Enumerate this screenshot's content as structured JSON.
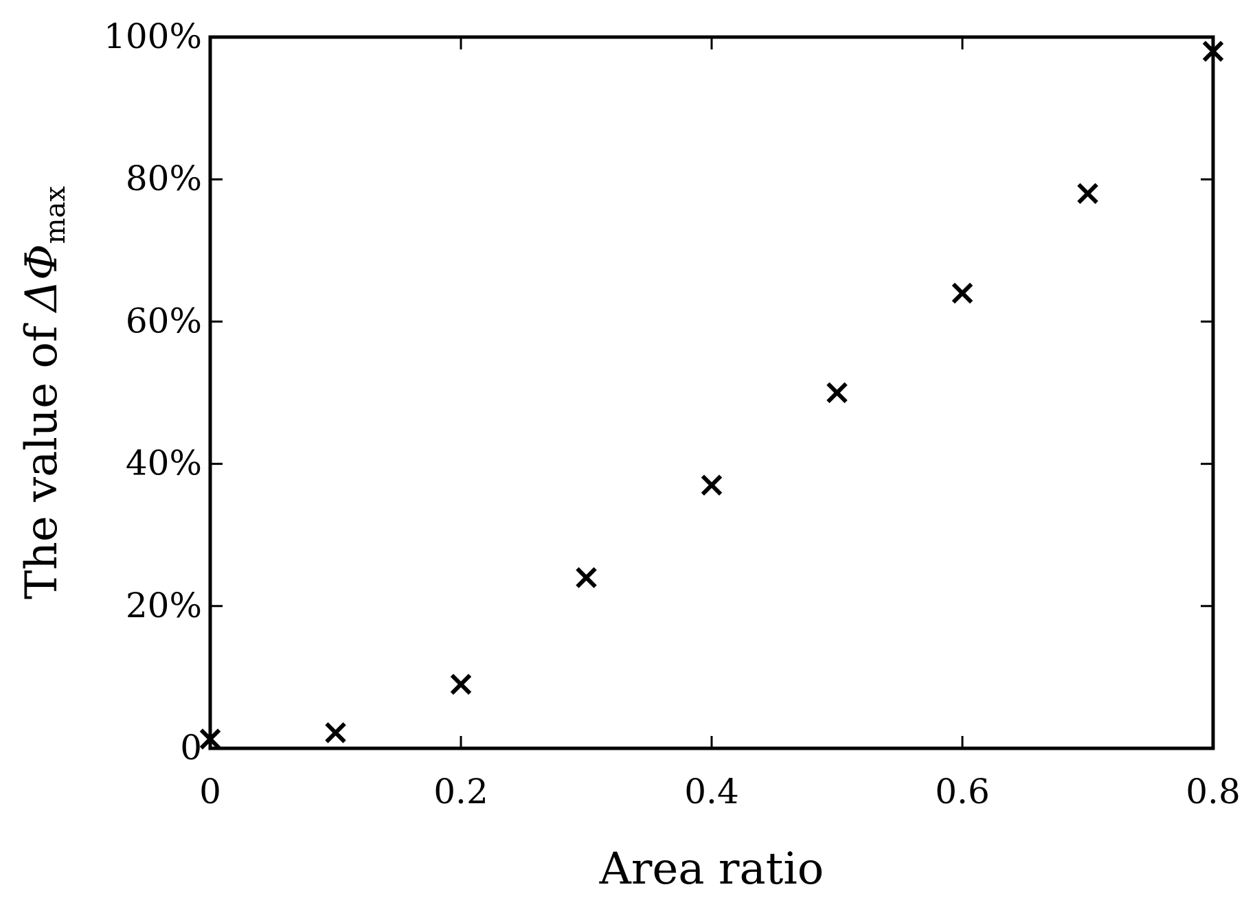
{
  "chart_data": {
    "type": "scatter",
    "xlabel": "Area ratio",
    "ylabel": {
      "prefix": "The value of ",
      "symbol": "ΔΦ",
      "subscript": "max"
    },
    "xlim": [
      0,
      0.8
    ],
    "ylim": [
      0,
      1
    ],
    "xticks": [
      0,
      0.2,
      0.4,
      0.6,
      0.8
    ],
    "xtick_labels": [
      "0",
      "0.2",
      "0.4",
      "0.6",
      "0.8"
    ],
    "yticks": [
      0,
      0.2,
      0.4,
      0.6,
      0.8,
      1.0
    ],
    "ytick_labels": [
      "0",
      "20%",
      "40%",
      "60%",
      "80%",
      "100%"
    ],
    "grid": false,
    "marker": "x",
    "marker_color": "#000000",
    "series": [
      {
        "x": [
          0,
          0.1,
          0.2,
          0.3,
          0.4,
          0.5,
          0.6,
          0.7,
          0.8
        ],
        "y": [
          0.013,
          0.022,
          0.09,
          0.24,
          0.37,
          0.5,
          0.64,
          0.78,
          0.98
        ]
      }
    ]
  }
}
